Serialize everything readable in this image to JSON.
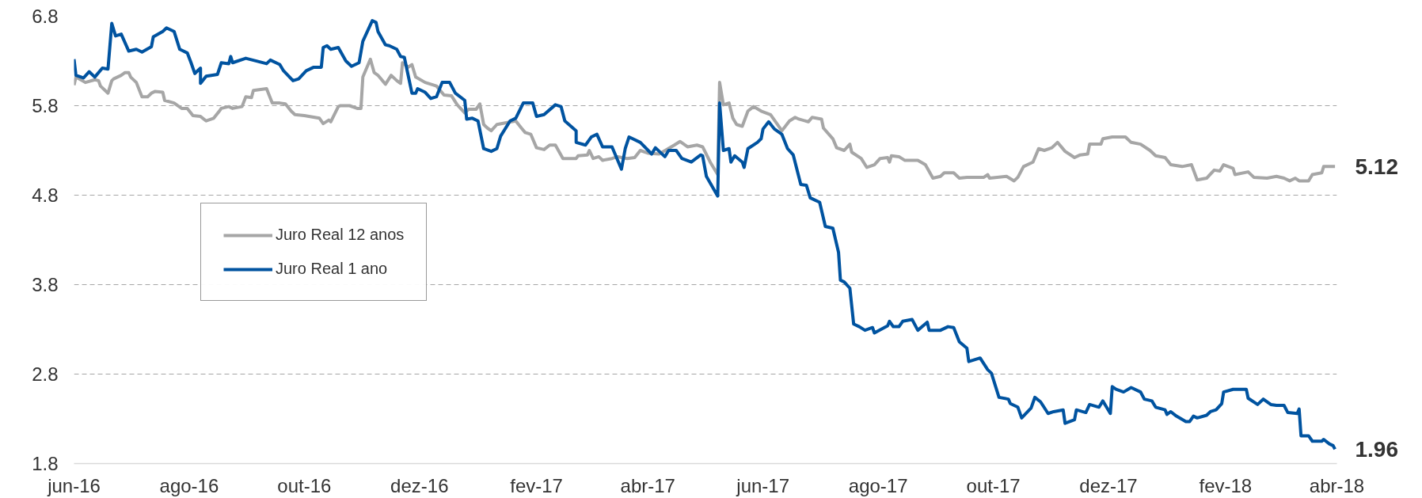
{
  "chart_data": {
    "type": "line",
    "xlim": [
      "2016-06-01",
      "2018-04-01"
    ],
    "xticks": [
      {
        "value": "2016-06-01",
        "label": "jun-16"
      },
      {
        "value": "2016-08-01",
        "label": "ago-16"
      },
      {
        "value": "2016-10-01",
        "label": "out-16"
      },
      {
        "value": "2016-12-01",
        "label": "dez-16"
      },
      {
        "value": "2017-02-01",
        "label": "fev-17"
      },
      {
        "value": "2017-04-01",
        "label": "abr-17"
      },
      {
        "value": "2017-06-01",
        "label": "jun-17"
      },
      {
        "value": "2017-08-01",
        "label": "ago-17"
      },
      {
        "value": "2017-10-01",
        "label": "out-17"
      },
      {
        "value": "2017-12-01",
        "label": "dez-17"
      },
      {
        "value": "2018-02-01",
        "label": "fev-18"
      },
      {
        "value": "2018-04-01",
        "label": "abr-18"
      }
    ],
    "ylim": [
      1.8,
      6.8
    ],
    "yticks": [
      1.8,
      2.8,
      3.8,
      4.8,
      5.8,
      6.8
    ],
    "grid": "y",
    "legend": "left",
    "line_style": "solid",
    "annotations": [
      {
        "text": "5.12",
        "x": "2018-03-31",
        "y": 5.12
      },
      {
        "text": "1.96",
        "x": "2018-03-31",
        "y": 1.96
      }
    ],
    "series": [
      {
        "name": "Juro Real 12 anos",
        "color": "#a6a6a6",
        "x": [
          "2016-06-01",
          "2016-06-02",
          "2016-06-07",
          "2016-06-12",
          "2016-06-14",
          "2016-06-15",
          "2016-06-19",
          "2016-06-21",
          "2016-06-22",
          "2016-06-26",
          "2016-06-28",
          "2016-06-30",
          "2016-07-01",
          "2016-07-04",
          "2016-07-07",
          "2016-07-10",
          "2016-07-12",
          "2016-07-14",
          "2016-07-18",
          "2016-07-19",
          "2016-07-24",
          "2016-07-28",
          "2016-07-31",
          "2016-08-03",
          "2016-08-07",
          "2016-08-10",
          "2016-08-14",
          "2016-08-17",
          "2016-08-18",
          "2016-08-22",
          "2016-08-24",
          "2016-08-29",
          "2016-08-31",
          "2016-09-03",
          "2016-09-04",
          "2016-09-11",
          "2016-09-14",
          "2016-09-18",
          "2016-09-21",
          "2016-09-24",
          "2016-09-26",
          "2016-10-01",
          "2016-10-09",
          "2016-10-11",
          "2016-10-14",
          "2016-10-15",
          "2016-10-19",
          "2016-10-20",
          "2016-10-25",
          "2016-10-29",
          "2016-10-31",
          "2016-11-01",
          "2016-11-05",
          "2016-11-07",
          "2016-11-09",
          "2016-11-13",
          "2016-11-16",
          "2016-11-19",
          "2016-11-21",
          "2016-11-22",
          "2016-11-25",
          "2016-11-27",
          "2016-11-29",
          "2016-12-04",
          "2016-12-10",
          "2016-12-14",
          "2016-12-18",
          "2016-12-21",
          "2016-12-25",
          "2016-12-27",
          "2016-12-31",
          "2017-01-02",
          "2017-01-04",
          "2017-01-06",
          "2017-01-08",
          "2017-01-11",
          "2017-01-16",
          "2017-01-21",
          "2017-01-24",
          "2017-01-26",
          "2017-01-29",
          "2017-02-01",
          "2017-02-05",
          "2017-02-08",
          "2017-02-11",
          "2017-02-15",
          "2017-02-22",
          "2017-02-23",
          "2017-02-28",
          "2017-03-01",
          "2017-03-03",
          "2017-03-06",
          "2017-03-08",
          "2017-03-13",
          "2017-03-16",
          "2017-03-21",
          "2017-03-25",
          "2017-03-28",
          "2017-04-01",
          "2017-04-07",
          "2017-04-15",
          "2017-04-18",
          "2017-04-22",
          "2017-04-27",
          "2017-04-30",
          "2017-05-04",
          "2017-05-08",
          "2017-05-09",
          "2017-05-11",
          "2017-05-14",
          "2017-05-16",
          "2017-05-18",
          "2017-05-21",
          "2017-05-24",
          "2017-05-27",
          "2017-05-31",
          "2017-06-05",
          "2017-06-11",
          "2017-06-15",
          "2017-06-18",
          "2017-06-20",
          "2017-06-25",
          "2017-06-27",
          "2017-07-02",
          "2017-07-03",
          "2017-07-08",
          "2017-07-10",
          "2017-07-14",
          "2017-07-17",
          "2017-07-18",
          "2017-07-23",
          "2017-07-26",
          "2017-07-30",
          "2017-08-02",
          "2017-08-06",
          "2017-08-07",
          "2017-08-08",
          "2017-08-12",
          "2017-08-15",
          "2017-08-22",
          "2017-08-26",
          "2017-08-30",
          "2017-09-03",
          "2017-09-05",
          "2017-09-10",
          "2017-09-13",
          "2017-09-17",
          "2017-09-26",
          "2017-09-28",
          "2017-09-29",
          "2017-10-08",
          "2017-10-12",
          "2017-10-14",
          "2017-10-17",
          "2017-10-22",
          "2017-10-25",
          "2017-10-28",
          "2017-11-01",
          "2017-11-04",
          "2017-11-08",
          "2017-11-13",
          "2017-11-16",
          "2017-11-20",
          "2017-11-21",
          "2017-11-27",
          "2017-11-28",
          "2017-12-03",
          "2017-12-10",
          "2017-12-13",
          "2017-12-18",
          "2017-12-23",
          "2017-12-26",
          "2017-12-31",
          "2018-01-03",
          "2018-01-09",
          "2018-01-14",
          "2018-01-17",
          "2018-01-22",
          "2018-01-26",
          "2018-01-29",
          "2018-01-31",
          "2018-02-05",
          "2018-02-06",
          "2018-02-13",
          "2018-02-16",
          "2018-02-23",
          "2018-02-28",
          "2018-03-04",
          "2018-03-07",
          "2018-03-10",
          "2018-03-12",
          "2018-03-17",
          "2018-03-19",
          "2018-03-24",
          "2018-03-25",
          "2018-03-31"
        ],
        "values": [
          6.03,
          6.12,
          6.06,
          6.09,
          6.08,
          6.02,
          5.94,
          6.08,
          6.1,
          6.14,
          6.17,
          6.17,
          6.12,
          6.06,
          5.9,
          5.9,
          5.94,
          5.96,
          5.95,
          5.86,
          5.83,
          5.77,
          5.77,
          5.69,
          5.68,
          5.63,
          5.66,
          5.74,
          5.77,
          5.79,
          5.77,
          5.79,
          5.9,
          5.89,
          5.97,
          5.99,
          5.83,
          5.83,
          5.82,
          5.74,
          5.7,
          5.69,
          5.66,
          5.6,
          5.64,
          5.62,
          5.79,
          5.8,
          5.8,
          5.77,
          5.77,
          6.12,
          6.32,
          6.17,
          6.14,
          6.04,
          6.14,
          6.08,
          6.05,
          6.28,
          6.23,
          6.26,
          6.12,
          6.06,
          6.02,
          5.92,
          5.91,
          5.81,
          5.72,
          5.76,
          5.76,
          5.82,
          5.59,
          5.55,
          5.52,
          5.59,
          5.61,
          5.63,
          5.55,
          5.5,
          5.48,
          5.33,
          5.31,
          5.36,
          5.36,
          5.21,
          5.21,
          5.24,
          5.25,
          5.3,
          5.21,
          5.23,
          5.19,
          5.21,
          5.23,
          5.21,
          5.22,
          5.3,
          5.27,
          5.26,
          5.36,
          5.4,
          5.34,
          5.36,
          5.34,
          5.17,
          5.03,
          6.06,
          5.81,
          5.83,
          5.66,
          5.59,
          5.57,
          5.74,
          5.79,
          5.74,
          5.7,
          5.52,
          5.63,
          5.67,
          5.65,
          5.62,
          5.67,
          5.65,
          5.55,
          5.43,
          5.33,
          5.3,
          5.37,
          5.28,
          5.21,
          5.11,
          5.14,
          5.21,
          5.22,
          5.17,
          5.24,
          5.23,
          5.19,
          5.19,
          5.14,
          4.99,
          5.01,
          5.05,
          5.05,
          4.99,
          5.0,
          5.0,
          5.03,
          4.99,
          5.01,
          4.96,
          5.0,
          5.12,
          5.17,
          5.32,
          5.3,
          5.33,
          5.39,
          5.29,
          5.22,
          5.25,
          5.26,
          5.37,
          5.37,
          5.43,
          5.45,
          5.45,
          5.39,
          5.37,
          5.3,
          5.24,
          5.22,
          5.14,
          5.12,
          5.14,
          4.97,
          4.99,
          5.08,
          5.07,
          5.14,
          5.1,
          5.03,
          5.06,
          5.0,
          4.99,
          5.01,
          4.99,
          4.96,
          4.99,
          4.96,
          4.96,
          5.03,
          5.05,
          5.12,
          5.12
        ]
      },
      {
        "name": "Juro Real 1 ano",
        "color": "#0053a0",
        "x": [
          "2016-06-01",
          "2016-06-02",
          "2016-06-06",
          "2016-06-09",
          "2016-06-12",
          "2016-06-16",
          "2016-06-19",
          "2016-06-21",
          "2016-06-23",
          "2016-06-26",
          "2016-06-30",
          "2016-07-04",
          "2016-07-07",
          "2016-07-12",
          "2016-07-13",
          "2016-07-18",
          "2016-07-20",
          "2016-07-24",
          "2016-07-27",
          "2016-07-31",
          "2016-08-02",
          "2016-08-04",
          "2016-08-07",
          "2016-08-07",
          "2016-08-10",
          "2016-08-16",
          "2016-08-18",
          "2016-08-22",
          "2016-08-23",
          "2016-08-24",
          "2016-08-31",
          "2016-09-11",
          "2016-09-13",
          "2016-09-18",
          "2016-09-20",
          "2016-09-25",
          "2016-09-28",
          "2016-10-02",
          "2016-10-06",
          "2016-10-10",
          "2016-10-11",
          "2016-10-13",
          "2016-10-15",
          "2016-10-19",
          "2016-10-23",
          "2016-10-26",
          "2016-10-30",
          "2016-11-01",
          "2016-11-06",
          "2016-11-08",
          "2016-11-09",
          "2016-11-13",
          "2016-11-15",
          "2016-11-19",
          "2016-11-21",
          "2016-11-23",
          "2016-11-27",
          "2016-11-29",
          "2016-11-30",
          "2016-12-04",
          "2016-12-07",
          "2016-12-10",
          "2016-12-13",
          "2016-12-17",
          "2016-12-20",
          "2016-12-25",
          "2016-12-26",
          "2016-12-29",
          "2017-01-01",
          "2017-01-04",
          "2017-01-08",
          "2017-01-11",
          "2017-01-13",
          "2017-01-18",
          "2017-01-21",
          "2017-01-25",
          "2017-01-30",
          "2017-02-01",
          "2017-02-05",
          "2017-02-11",
          "2017-02-14",
          "2017-02-16",
          "2017-02-22",
          "2017-02-22",
          "2017-02-27",
          "2017-03-02",
          "2017-03-05",
          "2017-03-08",
          "2017-03-13",
          "2017-03-18",
          "2017-03-20",
          "2017-03-22",
          "2017-03-28",
          "2017-04-03",
          "2017-04-05",
          "2017-04-10",
          "2017-04-12",
          "2017-04-16",
          "2017-04-19",
          "2017-04-24",
          "2017-04-29",
          "2017-04-30",
          "2017-05-02",
          "2017-05-08",
          "2017-05-09",
          "2017-05-11",
          "2017-05-14",
          "2017-05-15",
          "2017-05-17",
          "2017-05-21",
          "2017-05-22",
          "2017-05-24",
          "2017-05-29",
          "2017-05-31",
          "2017-06-01",
          "2017-06-04",
          "2017-06-07",
          "2017-06-11",
          "2017-06-14",
          "2017-06-17",
          "2017-06-21",
          "2017-06-24",
          "2017-06-26",
          "2017-07-01",
          "2017-07-04",
          "2017-07-08",
          "2017-07-11",
          "2017-07-12",
          "2017-07-14",
          "2017-07-17",
          "2017-07-19",
          "2017-07-22",
          "2017-07-25",
          "2017-07-29",
          "2017-07-30",
          "2017-08-06",
          "2017-08-07",
          "2017-08-09",
          "2017-08-12",
          "2017-08-14",
          "2017-08-19",
          "2017-08-22",
          "2017-08-27",
          "2017-08-28",
          "2017-09-03",
          "2017-09-07",
          "2017-09-10",
          "2017-09-13",
          "2017-09-17",
          "2017-09-18",
          "2017-09-24",
          "2017-09-28",
          "2017-09-30",
          "2017-10-04",
          "2017-10-09",
          "2017-10-10",
          "2017-10-14",
          "2017-10-16",
          "2017-10-21",
          "2017-10-23",
          "2017-10-26",
          "2017-10-30",
          "2017-11-02",
          "2017-11-07",
          "2017-11-08",
          "2017-11-13",
          "2017-11-14",
          "2017-11-19",
          "2017-11-21",
          "2017-11-26",
          "2017-11-28",
          "2017-12-02",
          "2017-12-03",
          "2017-12-05",
          "2017-12-09",
          "2017-12-13",
          "2017-12-18",
          "2017-12-20",
          "2017-12-24",
          "2017-12-26",
          "2017-12-31",
          "2018-01-01",
          "2018-01-03",
          "2018-01-06",
          "2018-01-11",
          "2018-01-13",
          "2018-01-15",
          "2018-01-17",
          "2018-01-22",
          "2018-01-24",
          "2018-01-27",
          "2018-01-30",
          "2018-01-31",
          "2018-02-05",
          "2018-02-12",
          "2018-02-13",
          "2018-02-18",
          "2018-02-21",
          "2018-02-25",
          "2018-02-28",
          "2018-03-04",
          "2018-03-06",
          "2018-03-11",
          "2018-03-12",
          "2018-03-13",
          "2018-03-17",
          "2018-03-19",
          "2018-03-24",
          "2018-03-25",
          "2018-03-28",
          "2018-03-30",
          "2018-03-31"
        ],
        "values": [
          6.32,
          6.14,
          6.11,
          6.18,
          6.12,
          6.22,
          6.21,
          6.72,
          6.58,
          6.6,
          6.41,
          6.43,
          6.4,
          6.46,
          6.57,
          6.63,
          6.67,
          6.63,
          6.43,
          6.39,
          6.28,
          6.16,
          6.22,
          6.05,
          6.13,
          6.15,
          6.28,
          6.27,
          6.35,
          6.28,
          6.33,
          6.27,
          6.31,
          6.26,
          6.19,
          6.08,
          6.1,
          6.19,
          6.23,
          6.23,
          6.45,
          6.47,
          6.43,
          6.45,
          6.3,
          6.24,
          6.28,
          6.52,
          6.75,
          6.73,
          6.63,
          6.48,
          6.47,
          6.43,
          6.35,
          6.34,
          5.94,
          5.94,
          5.99,
          5.95,
          5.88,
          5.9,
          6.06,
          6.06,
          5.94,
          5.86,
          5.65,
          5.66,
          5.63,
          5.32,
          5.29,
          5.32,
          5.46,
          5.63,
          5.66,
          5.83,
          5.83,
          5.68,
          5.7,
          5.81,
          5.79,
          5.63,
          5.52,
          5.39,
          5.36,
          5.45,
          5.48,
          5.34,
          5.34,
          5.09,
          5.32,
          5.45,
          5.39,
          5.26,
          5.33,
          5.23,
          5.3,
          5.3,
          5.21,
          5.17,
          5.25,
          5.24,
          5.01,
          4.79,
          5.83,
          5.3,
          5.32,
          5.17,
          5.24,
          5.17,
          5.11,
          5.32,
          5.39,
          5.43,
          5.54,
          5.62,
          5.54,
          5.48,
          5.32,
          5.25,
          4.92,
          4.91,
          4.77,
          4.72,
          4.45,
          4.43,
          4.16,
          3.85,
          3.83,
          3.76,
          3.36,
          3.33,
          3.29,
          3.32,
          3.26,
          3.34,
          3.39,
          3.33,
          3.33,
          3.39,
          3.41,
          3.29,
          3.38,
          3.29,
          3.29,
          3.33,
          3.32,
          3.16,
          3.09,
          2.94,
          2.98,
          2.85,
          2.81,
          2.54,
          2.52,
          2.47,
          2.43,
          2.31,
          2.42,
          2.54,
          2.49,
          2.36,
          2.38,
          2.4,
          2.25,
          2.29,
          2.4,
          2.37,
          2.46,
          2.43,
          2.5,
          2.36,
          2.66,
          2.63,
          2.6,
          2.65,
          2.6,
          2.52,
          2.5,
          2.43,
          2.4,
          2.35,
          2.38,
          2.33,
          2.27,
          2.27,
          2.33,
          2.31,
          2.34,
          2.38,
          2.4,
          2.47,
          2.6,
          2.63,
          2.63,
          2.53,
          2.46,
          2.52,
          2.46,
          2.45,
          2.45,
          2.37,
          2.36,
          2.41,
          2.11,
          2.11,
          2.05,
          2.05,
          2.07,
          2.02,
          2.0,
          1.96
        ]
      }
    ]
  }
}
